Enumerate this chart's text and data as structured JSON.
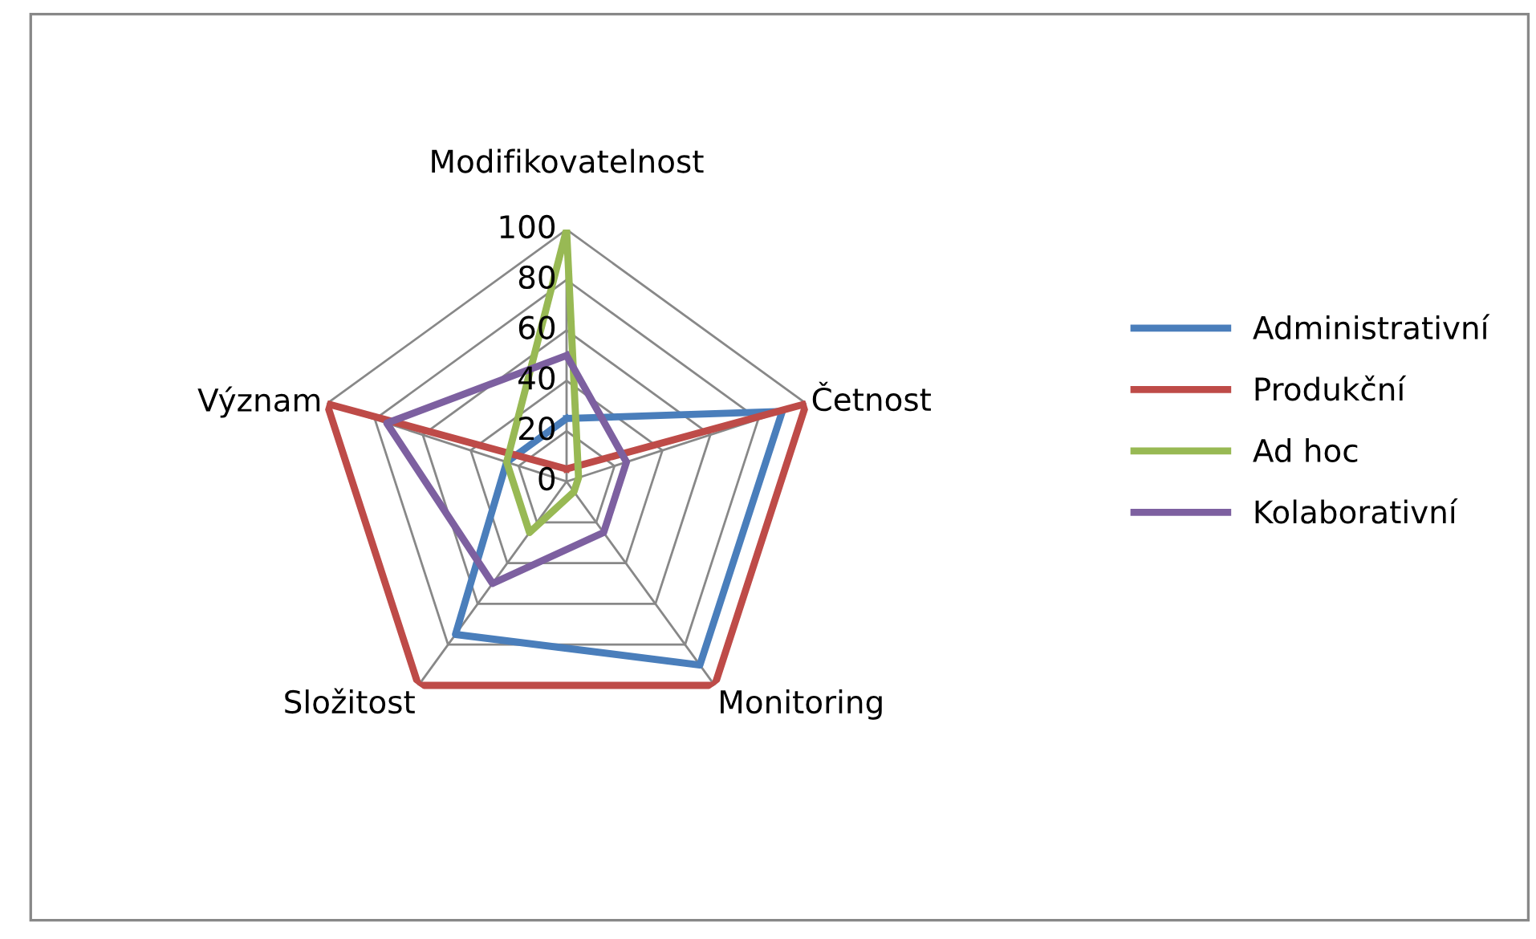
{
  "chart_data": {
    "type": "radar",
    "categories": [
      "Modifikovatelnost",
      "Četnost",
      "Monitoring",
      "Složitost",
      "Význam"
    ],
    "series": [
      {
        "name": "Administrativní",
        "color": "#4a7ebb",
        "values": [
          25,
          90,
          90,
          75,
          25
        ]
      },
      {
        "name": "Produkční",
        "color": "#be4b48",
        "values": [
          5,
          100,
          100,
          100,
          100
        ]
      },
      {
        "name": "Ad hoc",
        "color": "#98b954",
        "values": [
          100,
          5,
          5,
          25,
          25
        ]
      },
      {
        "name": "Kolaborativní",
        "color": "#7d60a0",
        "values": [
          50,
          25,
          25,
          50,
          75
        ]
      }
    ],
    "ylim": [
      0,
      100
    ],
    "yticks": [
      0,
      20,
      40,
      60,
      80,
      100
    ],
    "grid": true,
    "legend": "right",
    "marker": "none",
    "line_style": "solid"
  }
}
